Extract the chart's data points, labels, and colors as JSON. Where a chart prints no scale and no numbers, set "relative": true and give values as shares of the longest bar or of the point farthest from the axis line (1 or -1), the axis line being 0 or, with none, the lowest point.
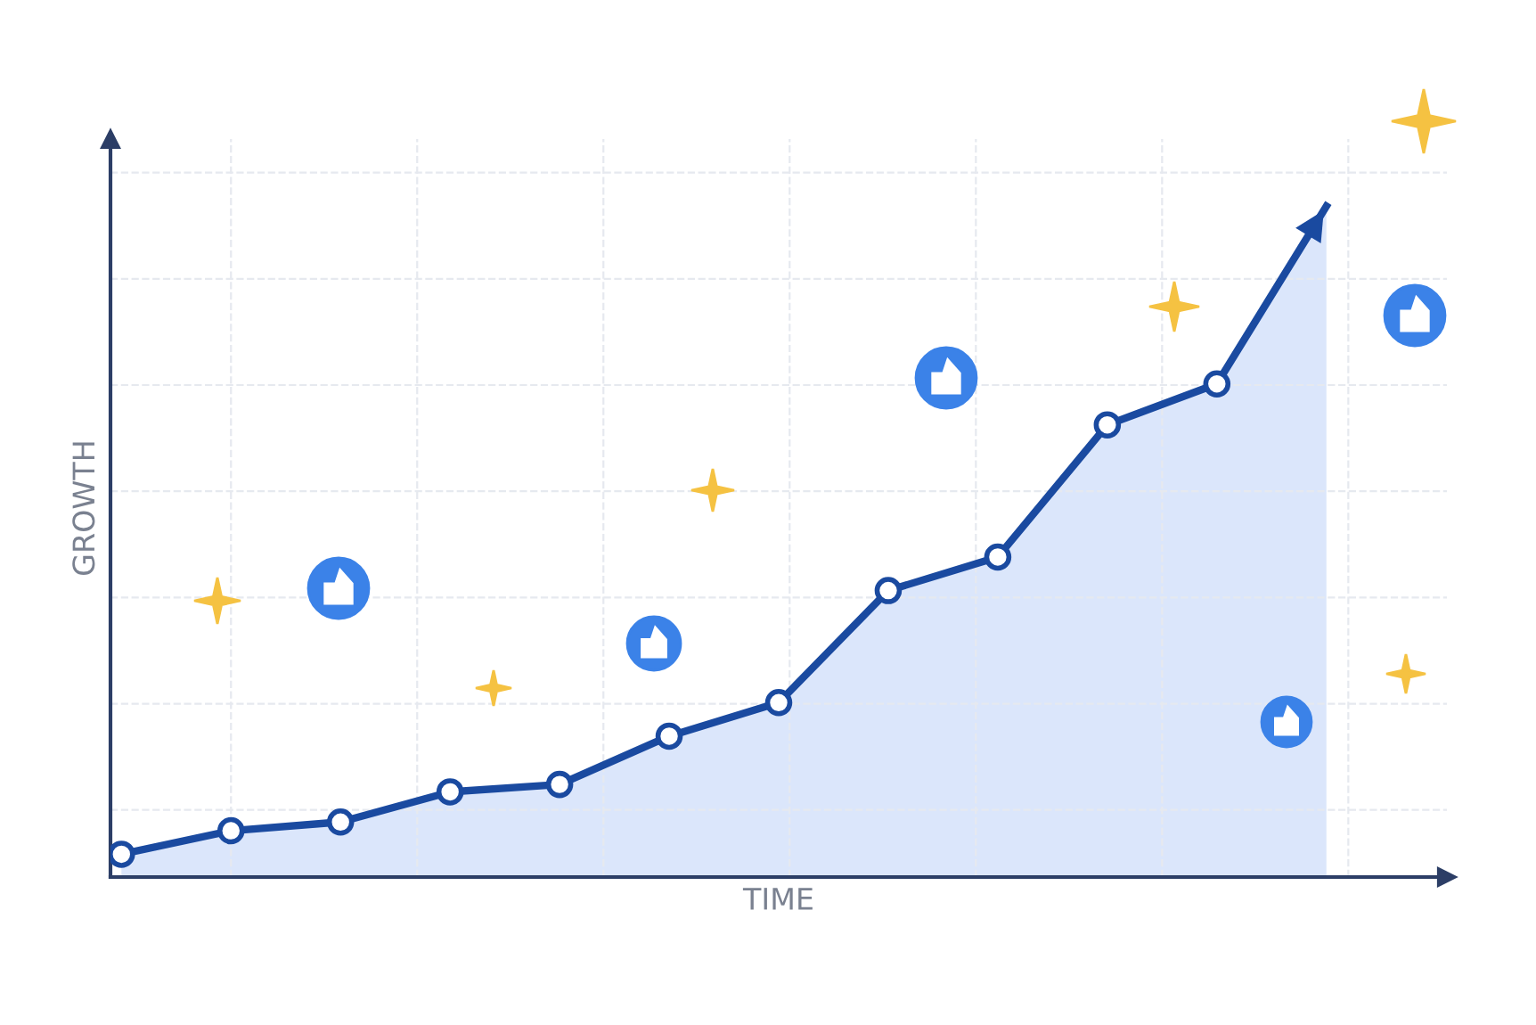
{
  "chart_data": {
    "type": "area",
    "relative": true,
    "xlabel": "TIME",
    "ylabel": "GROWTH",
    "categories": [
      null,
      null,
      null,
      null,
      null,
      null,
      null,
      null,
      null,
      null,
      null,
      null
    ],
    "series": [
      {
        "color": "#1a4aa0",
        "values": [
          0.034,
          0.069,
          0.082,
          0.127,
          0.138,
          0.21,
          0.26,
          0.427,
          0.477,
          0.674,
          0.735,
          1
        ]
      }
    ],
    "marker": "circle",
    "grid": true,
    "tick_labels": false
  }
}
